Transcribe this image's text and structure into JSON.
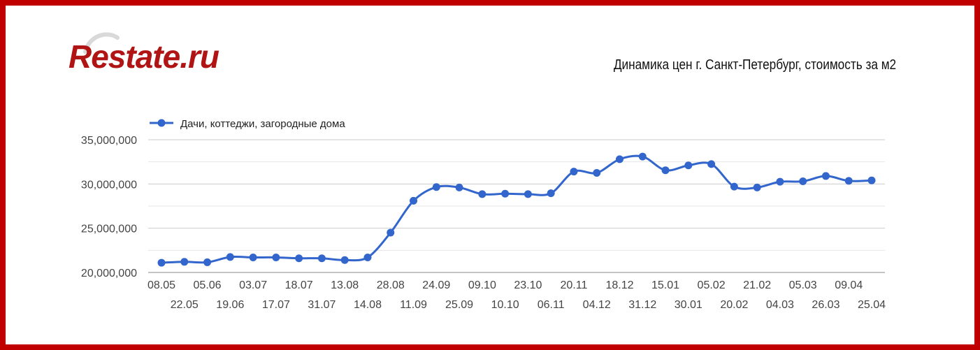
{
  "brand": {
    "logo_text": "Restate.ru"
  },
  "title": "Динамика цен г. Санкт-Петербург, стоимость за м2",
  "colors": {
    "frame": "#c00000",
    "series": "#3366cc",
    "logo": "#b01414",
    "grid": "#d9d9d9"
  },
  "chart_data": {
    "type": "line",
    "title": "Динамика цен г. Санкт-Петербург, стоимость за м2",
    "legend_position": "top-left",
    "grid": true,
    "ylim": [
      20000000,
      35000000
    ],
    "yticks": [
      "20,000,000",
      "25,000,000",
      "30,000,000",
      "35,000,000"
    ],
    "ytick_values": [
      20000000,
      25000000,
      30000000,
      35000000
    ],
    "x": [
      "08.05",
      "22.05",
      "05.06",
      "19.06",
      "03.07",
      "17.07",
      "18.07",
      "31.07",
      "13.08",
      "14.08",
      "28.08",
      "11.09",
      "24.09",
      "25.09",
      "09.10",
      "10.10",
      "23.10",
      "06.11",
      "20.11",
      "04.12",
      "18.12",
      "31.12",
      "15.01",
      "30.01",
      "05.02",
      "20.02",
      "21.02",
      "04.03",
      "05.03",
      "26.03",
      "09.04",
      "25.04"
    ],
    "series": [
      {
        "name": "Дачи, коттеджи, загородные дома",
        "values": [
          21100000,
          21200000,
          21150000,
          21750000,
          21700000,
          21700000,
          21600000,
          21600000,
          21400000,
          21700000,
          24500000,
          28100000,
          29650000,
          29600000,
          28850000,
          28900000,
          28850000,
          28950000,
          31400000,
          31250000,
          32800000,
          33100000,
          31550000,
          32100000,
          32250000,
          29700000,
          29600000,
          30250000,
          30300000,
          30900000,
          30350000,
          30400000
        ]
      }
    ]
  }
}
